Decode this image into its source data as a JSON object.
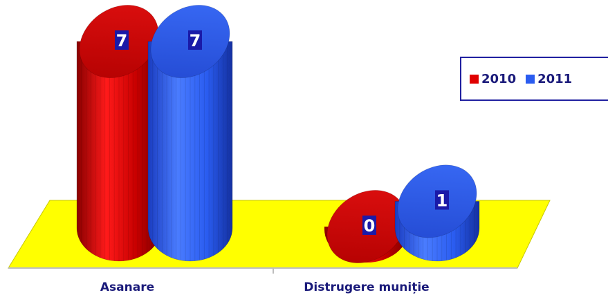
{
  "chart_data": {
    "type": "bar",
    "style": "3d-cylinder",
    "categories": [
      "Asanare",
      "Distrugere muniție"
    ],
    "series": [
      {
        "name": "2010",
        "values": [
          7,
          0
        ],
        "color": "#d40000"
      },
      {
        "name": "2011",
        "values": [
          7,
          1
        ],
        "color": "#2a5cf0"
      }
    ],
    "ylim": [
      0,
      7
    ],
    "grid": false,
    "legend_position": "right",
    "floor_color": "#ffff00"
  }
}
